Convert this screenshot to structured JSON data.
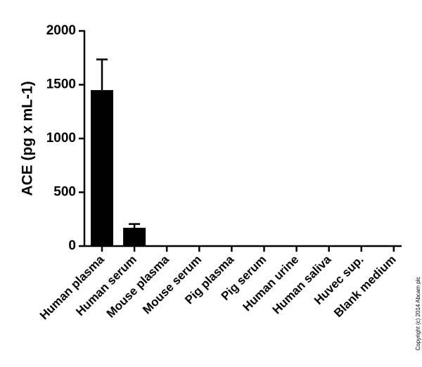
{
  "chart_data": {
    "type": "bar",
    "y_label": "ACE (pg x mL-1)",
    "categories": [
      "Human plasma",
      "Human serum",
      "Mouse plasma",
      "Mouse serum",
      "Pig plasma",
      "Pig serum",
      "Human urine",
      "Human saliva",
      "Huvec sup.",
      "Blank medium"
    ],
    "values": [
      1450,
      170,
      0,
      0,
      0,
      0,
      0,
      0,
      0,
      0
    ],
    "errors": [
      285,
      35,
      0,
      0,
      0,
      0,
      0,
      0,
      0,
      0
    ],
    "color": "#000000",
    "ylim": [
      0,
      2000
    ],
    "yticks": [
      0,
      500,
      1000,
      1500,
      2000
    ],
    "grid": false,
    "credit": "Copyright (c) 2014 Abcam plc"
  }
}
